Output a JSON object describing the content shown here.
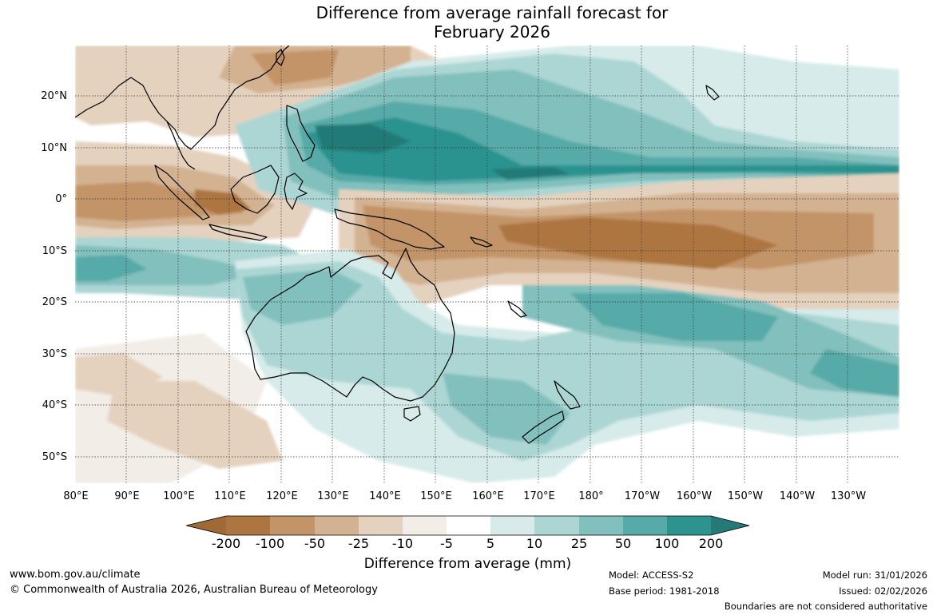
{
  "title_line1": "Difference from average rainfall forecast for",
  "title_line2": "February 2026",
  "lat_labels": [
    "20°N",
    "10°N",
    "0°",
    "10°S",
    "20°S",
    "30°S",
    "40°S",
    "50°S"
  ],
  "lon_labels": [
    "80°E",
    "90°E",
    "100°E",
    "110°E",
    "120°E",
    "130°E",
    "140°E",
    "150°E",
    "160°E",
    "170°E",
    "180°",
    "170°W",
    "160°W",
    "150°W",
    "140°W",
    "130°W"
  ],
  "legend": {
    "title": "Difference from average (mm)",
    "labels": [
      "-200",
      "-100",
      "-50",
      "-25",
      "-10",
      "-5",
      "5",
      "10",
      "25",
      "50",
      "100",
      "200"
    ],
    "colors": [
      "#a06a36",
      "#ad7540",
      "#c39467",
      "#d3b291",
      "#e4d2bf",
      "#f2ede6",
      "#ffffff",
      "#d6ebea",
      "#acd6d4",
      "#82c0bd",
      "#57aaa7",
      "#2c938f",
      "#237a76"
    ]
  },
  "footer": {
    "website": "www.bom.gov.au/climate",
    "copyright": "© Commonwealth of Australia 2026, Australian Bureau of Meteorology",
    "model": "Model: ACCESS-S2",
    "base_period": "Base period: 1981-2018",
    "model_run": "Model run: 31/01/2026",
    "issued": "Issued: 02/02/2026",
    "disclaimer": "Boundaries are not considered authoritative"
  }
}
